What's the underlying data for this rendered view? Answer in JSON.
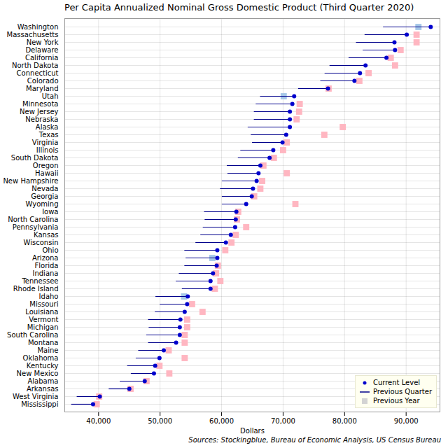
{
  "chart_data": {
    "type": "dot",
    "orientation": "horizontal",
    "title": "Per Capita Annualized Nominal Gross Domestic Product (Third Quarter 2020)",
    "x_label": "Dollars",
    "caption": "Sources: Stockingblue, Bureau of Economic Analysis, US Census Bureau",
    "categories": [
      "Washington",
      "Massachusetts",
      "New York",
      "Delaware",
      "California",
      "North Dakota",
      "Connecticut",
      "Colorado",
      "Maryland",
      "Utah",
      "Minnesota",
      "New Jersey",
      "Nebraska",
      "Alaska",
      "Texas",
      "Virginia",
      "Illinois",
      "South Dakota",
      "Oregon",
      "Hawaii",
      "New Hampshire",
      "Nevada",
      "Georgia",
      "Wyoming",
      "Iowa",
      "North Carolina",
      "Pennsylvania",
      "Kansas",
      "Wisconsin",
      "Ohio",
      "Arizona",
      "Florida",
      "Indiana",
      "Tennessee",
      "Rhode Island",
      "Idaho",
      "Missouri",
      "Louisiana",
      "Vermont",
      "Michigan",
      "South Carolina",
      "Montana",
      "Maine",
      "Oklahoma",
      "Kentucky",
      "New Mexico",
      "Alabama",
      "Arkansas",
      "West Virginia",
      "Mississippi"
    ],
    "series": [
      {
        "name": "Current Level",
        "marker": "circle",
        "color": "#0000cd",
        "values": [
          94000,
          90100,
          88100,
          88200,
          86800,
          83400,
          82500,
          81600,
          77300,
          71800,
          71500,
          71100,
          71100,
          71100,
          70500,
          69900,
          68400,
          67800,
          66300,
          66000,
          65700,
          65100,
          64900,
          64000,
          62400,
          62300,
          62200,
          61500,
          60700,
          59300,
          59300,
          59200,
          58600,
          58200,
          58200,
          54500,
          54400,
          54000,
          53300,
          53200,
          53200,
          52600,
          50600,
          49900,
          49200,
          49000,
          47500,
          45000,
          40200,
          39100
        ]
      },
      {
        "name": "Previous Quarter",
        "marker": "line",
        "color": "#00008b",
        "values": [
          86300,
          83300,
          81900,
          83000,
          80700,
          77600,
          76800,
          76100,
          72500,
          66300,
          65600,
          65300,
          65300,
          64300,
          64800,
          65000,
          63100,
          62700,
          60900,
          61000,
          60100,
          59800,
          60100,
          60100,
          57200,
          57300,
          57000,
          56600,
          55800,
          54000,
          54200,
          54000,
          53100,
          52600,
          53600,
          49300,
          50000,
          49200,
          48100,
          48200,
          47800,
          48100,
          46500,
          46100,
          44700,
          45300,
          43500,
          41700,
          36500,
          35600
        ]
      },
      {
        "name": "Previous Year",
        "marker": "square",
        "color": "#d3d3d3",
        "values": [
          92000,
          91700,
          91700,
          89100,
          87500,
          88200,
          83900,
          82400,
          77400,
          70100,
          72700,
          72600,
          72200,
          79700,
          76700,
          70600,
          70000,
          68500,
          66800,
          70600,
          66600,
          66300,
          65300,
          72000,
          62700,
          62500,
          64000,
          62300,
          61600,
          60600,
          58500,
          59400,
          59100,
          59800,
          58900,
          53900,
          55200,
          56900,
          54400,
          54400,
          54000,
          54000,
          51400,
          54000,
          49900,
          51500,
          47800,
          45200,
          40100,
          39700
        ],
        "colors": [
          "#a6c8e8",
          "#ffb6c1",
          "#ffb6c1",
          "#ffb6c1",
          "#ffb6c1",
          "#ffb6c1",
          "#ffb6c1",
          "#ffb6c1",
          "#ffb6c1",
          "#a6c8e8",
          "#ffb6c1",
          "#ffb6c1",
          "#ffb6c1",
          "#ffb6c1",
          "#ffb6c1",
          "#ffb6c1",
          "#ffb6c1",
          "#ffb6c1",
          "#ffb6c1",
          "#ffb6c1",
          "#ffb6c1",
          "#ffb6c1",
          "#ffb6c1",
          "#ffb6c1",
          "#ffb6c1",
          "#ffb6c1",
          "#ffb6c1",
          "#ffb6c1",
          "#ffb6c1",
          "#ffb6c1",
          "#a6c8e8",
          "#ffb6c1",
          "#ffb6c1",
          "#ffb6c1",
          "#ffb6c1",
          "#a6c8e8",
          "#ffb6c1",
          "#ffb6c1",
          "#ffb6c1",
          "#ffb6c1",
          "#ffb6c1",
          "#ffb6c1",
          "#ffb6c1",
          "#ffb6c1",
          "#ffb6c1",
          "#ffb6c1",
          "#ffb6c1",
          "#ffb6c1",
          "#ffb6c1",
          "#ffb6c1"
        ]
      }
    ],
    "xlim": [
      34500,
      95500
    ],
    "xticks": [
      {
        "value": 40000,
        "label": "40,000"
      },
      {
        "value": 50000,
        "label": "50,000"
      },
      {
        "value": 60000,
        "label": "60,000"
      },
      {
        "value": 70000,
        "label": "70,000"
      },
      {
        "value": 80000,
        "label": "80,000"
      },
      {
        "value": 90000,
        "label": "90,000"
      }
    ],
    "grid": true,
    "legend": "bottom-right"
  }
}
